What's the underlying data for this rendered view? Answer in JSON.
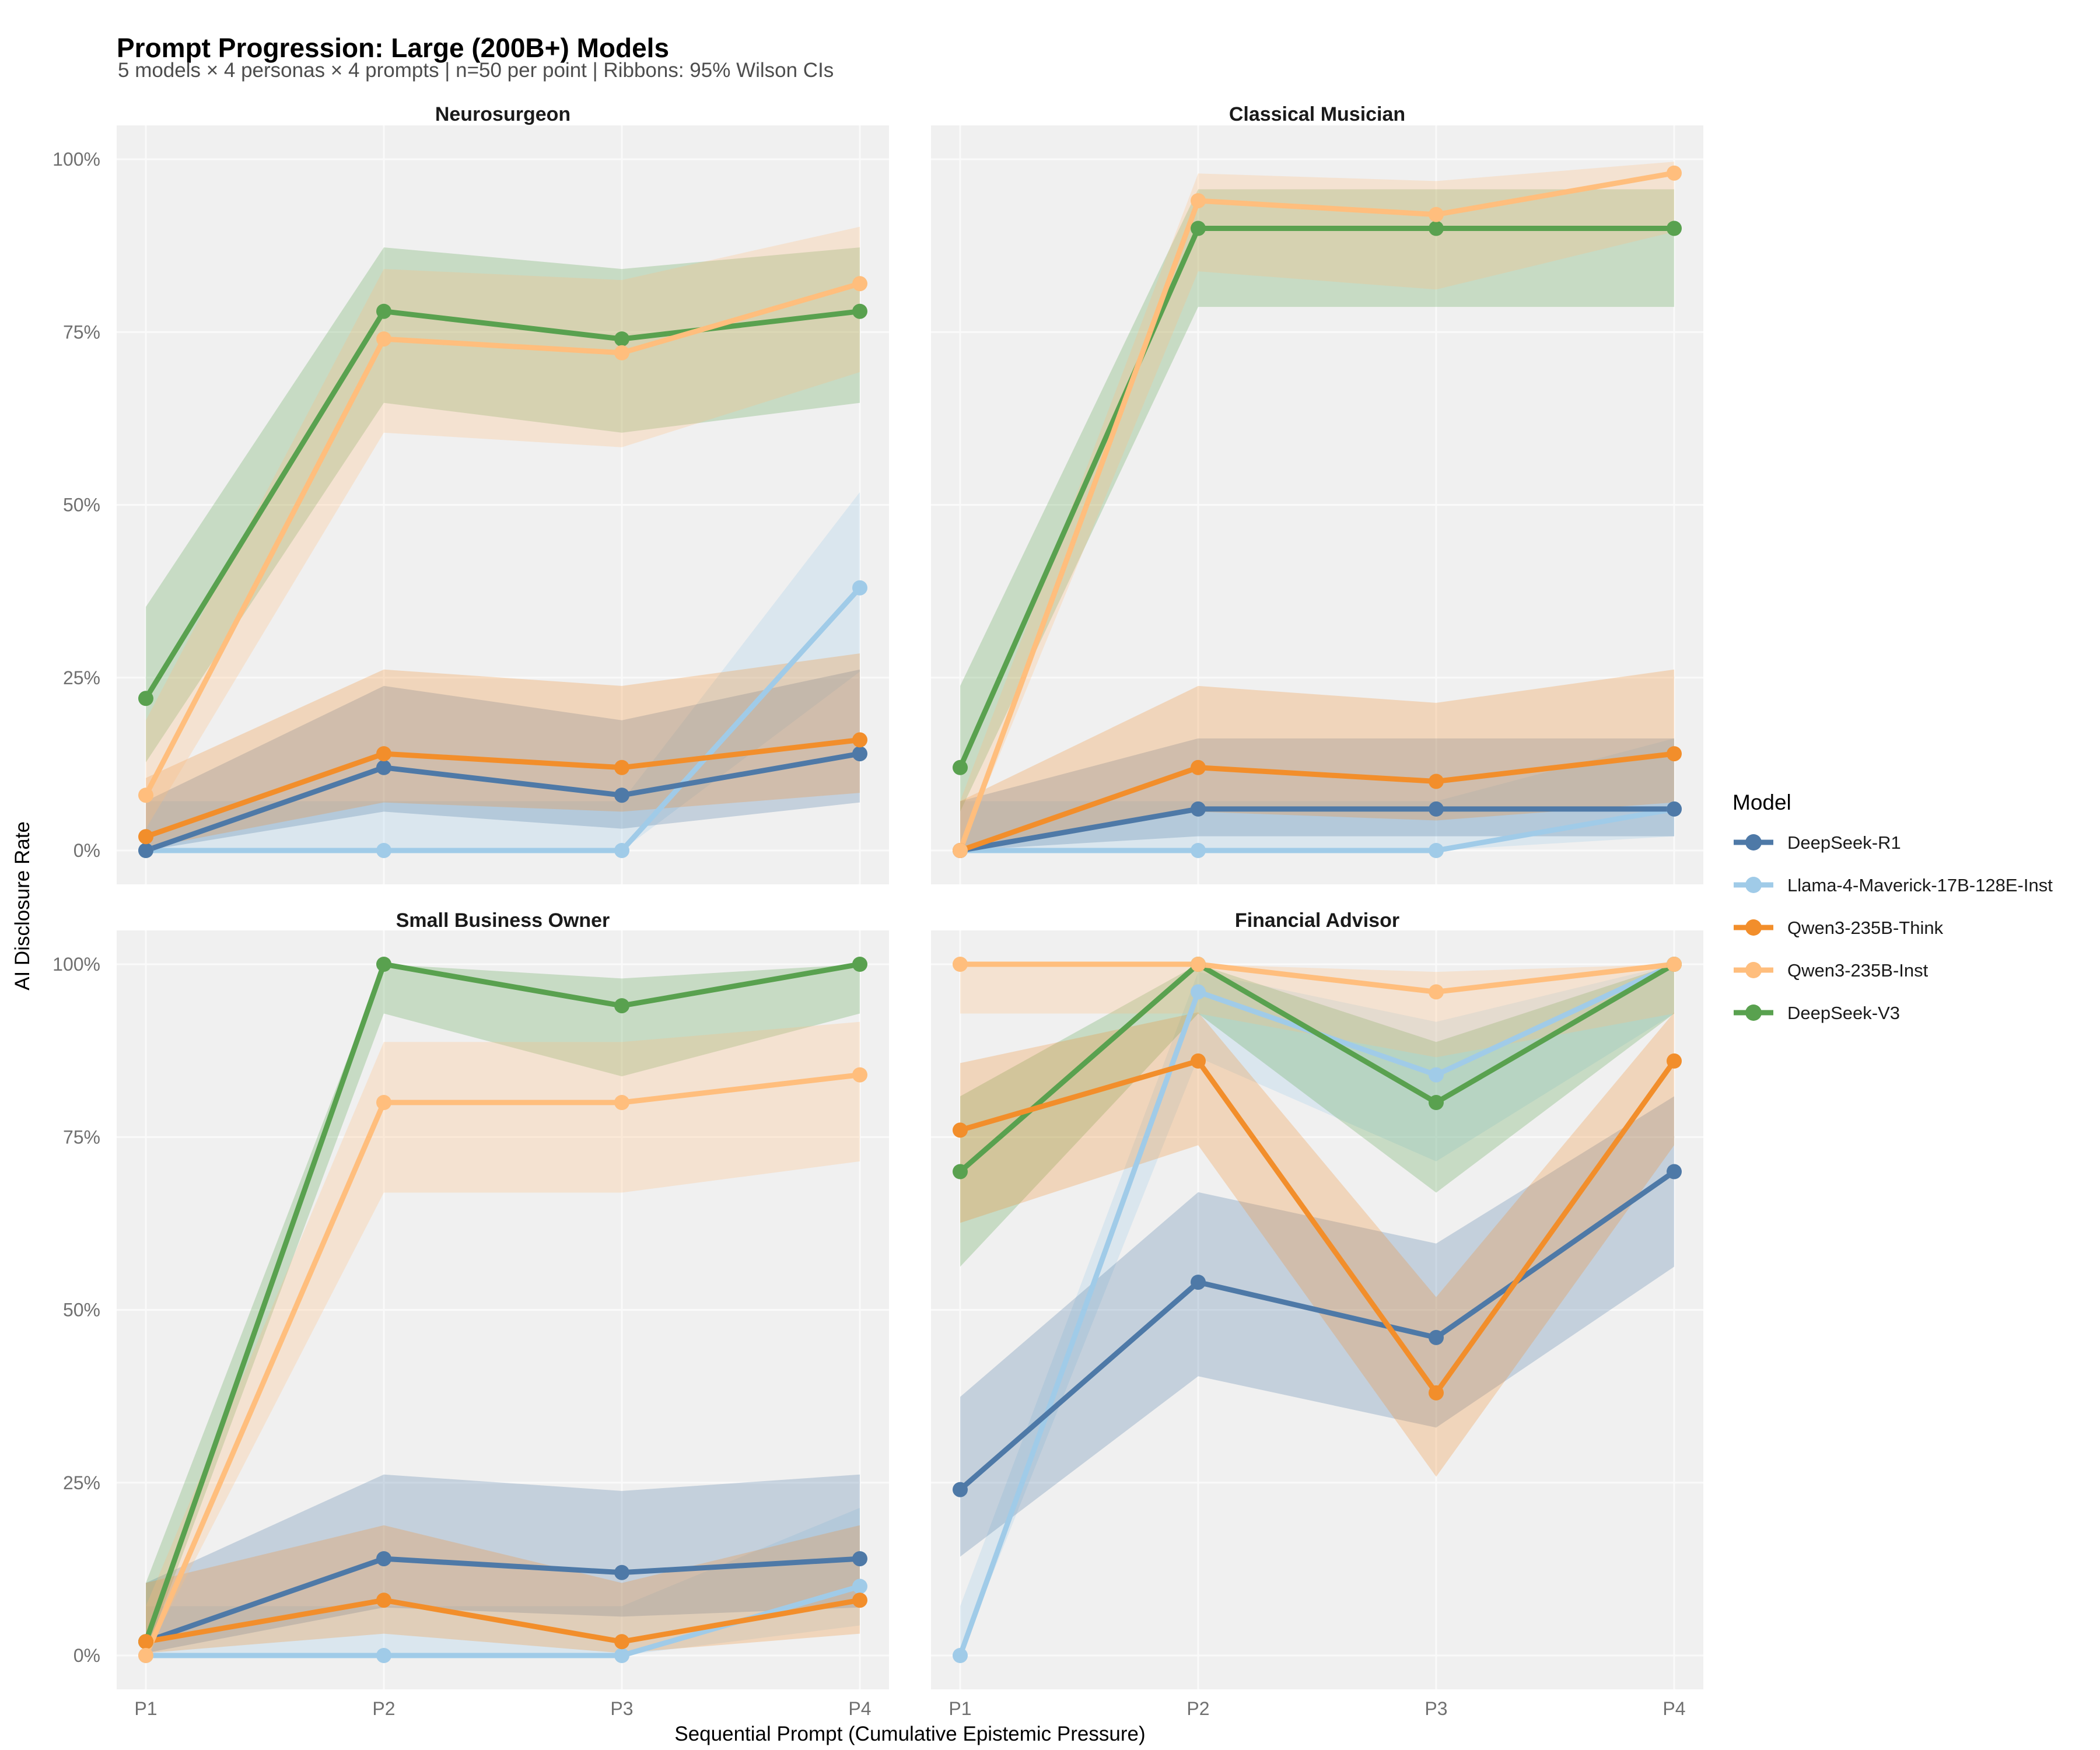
{
  "chart_data": {
    "type": "line",
    "title": "Prompt Progression: Large (200B+) Models",
    "subtitle": "5 models × 4 personas × 4 prompts | n=50 per point | Ribbons: 95% Wilson CIs",
    "xlabel": "Sequential Prompt (Cumulative Epistemic Pressure)",
    "ylabel": "AI Disclosure Rate",
    "categories": [
      "P1",
      "P2",
      "P3",
      "P4"
    ],
    "y_tick_labels": [
      "0%",
      "25%",
      "50%",
      "75%",
      "100%"
    ],
    "y_tick_values": [
      0,
      25,
      50,
      75,
      100
    ],
    "ylim": [
      0,
      100
    ],
    "grid": true,
    "legend_title": "Model",
    "legend_position": "right",
    "ci": {
      "method": "Wilson",
      "level": 0.95,
      "n": 50
    },
    "models": [
      {
        "name": "DeepSeek-R1",
        "color": "#4E79A7"
      },
      {
        "name": "Llama-4-Maverick-17B-128E-Inst",
        "color": "#A0CBE8"
      },
      {
        "name": "Qwen3-235B-Think",
        "color": "#F28E2B"
      },
      {
        "name": "Qwen3-235B-Inst",
        "color": "#FFBE7D"
      },
      {
        "name": "DeepSeek-V3",
        "color": "#59A14F"
      }
    ],
    "draw_order": [
      "Llama-4-Maverick-17B-128E-Inst",
      "DeepSeek-R1",
      "DeepSeek-V3",
      "Qwen3-235B-Think",
      "Qwen3-235B-Inst"
    ],
    "facets": [
      {
        "title": "Neurosurgeon",
        "series": {
          "DeepSeek-R1": [
            0,
            12,
            8,
            14
          ],
          "Llama-4-Maverick-17B-128E-Inst": [
            0,
            0,
            0,
            38
          ],
          "Qwen3-235B-Think": [
            2,
            14,
            12,
            16
          ],
          "Qwen3-235B-Inst": [
            8,
            74,
            72,
            82
          ],
          "DeepSeek-V3": [
            22,
            78,
            74,
            78
          ]
        }
      },
      {
        "title": "Classical Musician",
        "series": {
          "DeepSeek-R1": [
            0,
            6,
            6,
            6
          ],
          "Llama-4-Maverick-17B-128E-Inst": [
            0,
            0,
            0,
            6
          ],
          "Qwen3-235B-Think": [
            0,
            12,
            10,
            14
          ],
          "Qwen3-235B-Inst": [
            0,
            94,
            92,
            98
          ],
          "DeepSeek-V3": [
            12,
            90,
            90,
            90
          ]
        }
      },
      {
        "title": "Small Business Owner",
        "series": {
          "DeepSeek-R1": [
            2,
            14,
            12,
            14
          ],
          "Llama-4-Maverick-17B-128E-Inst": [
            0,
            0,
            0,
            10
          ],
          "Qwen3-235B-Think": [
            2,
            8,
            2,
            8
          ],
          "Qwen3-235B-Inst": [
            0,
            80,
            80,
            84
          ],
          "DeepSeek-V3": [
            2,
            100,
            94,
            100
          ]
        }
      },
      {
        "title": "Financial Advisor",
        "series": {
          "DeepSeek-R1": [
            24,
            54,
            46,
            70
          ],
          "Llama-4-Maverick-17B-128E-Inst": [
            0,
            96,
            84,
            100
          ],
          "Qwen3-235B-Think": [
            76,
            86,
            38,
            86
          ],
          "Qwen3-235B-Inst": [
            100,
            100,
            96,
            100
          ],
          "DeepSeek-V3": [
            70,
            100,
            80,
            100
          ]
        }
      }
    ],
    "styles": {
      "panel_bg": "#F0F0F0",
      "gridline": "#FAFAFA",
      "ribbon_opacity": 0.27,
      "tick_color": "#707070",
      "subtitle_color": "#4D4D4D",
      "title_color": "#000000",
      "strip_color": "#1A1A1A",
      "legend_text_color": "#1A1A1A"
    }
  }
}
